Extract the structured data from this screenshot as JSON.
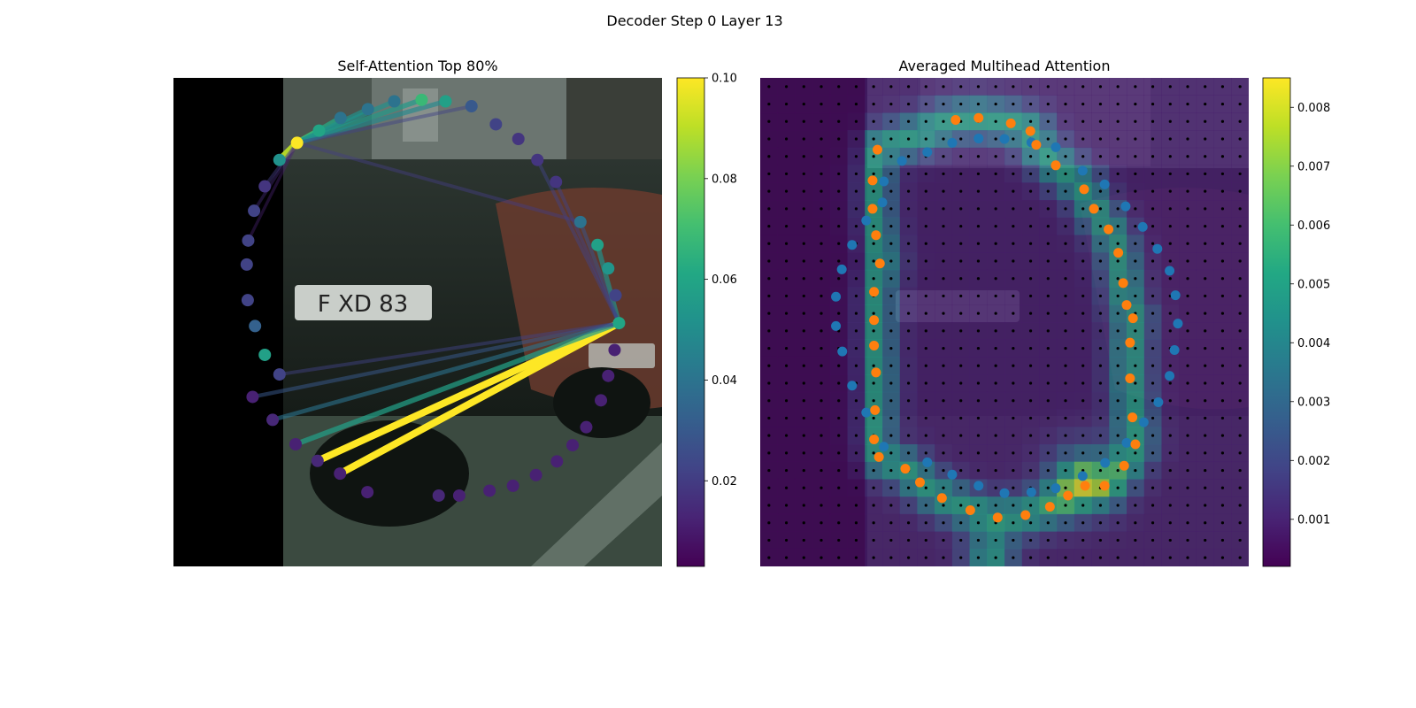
{
  "figure": {
    "title": "Decoder Step 0 Layer 13"
  },
  "chart_data": [
    {
      "type": "scatter",
      "title": "Self-Attention Top 80%",
      "background": "street-scene-photo",
      "xlim": [
        0,
        1
      ],
      "ylim": [
        0,
        1
      ],
      "colormap": "viridis",
      "colorbar": {
        "min": 0.003,
        "max": 0.1,
        "ticks": [
          0.02,
          0.04,
          0.06,
          0.08,
          0.1
        ],
        "tick_labels": [
          "0.02",
          "0.04",
          "0.06",
          "0.08",
          "0.10"
        ]
      },
      "points": [
        [
          0.397,
          0.848,
          0.012
        ],
        [
          0.341,
          0.81,
          0.012
        ],
        [
          0.295,
          0.784,
          0.014
        ],
        [
          0.25,
          0.75,
          0.012
        ],
        [
          0.203,
          0.7,
          0.014
        ],
        [
          0.162,
          0.653,
          0.012
        ],
        [
          0.217,
          0.607,
          0.022
        ],
        [
          0.187,
          0.567,
          0.058
        ],
        [
          0.167,
          0.508,
          0.033
        ],
        [
          0.152,
          0.455,
          0.022
        ],
        [
          0.15,
          0.382,
          0.022
        ],
        [
          0.153,
          0.333,
          0.022
        ],
        [
          0.165,
          0.272,
          0.022
        ],
        [
          0.187,
          0.222,
          0.018
        ],
        [
          0.217,
          0.168,
          0.052
        ],
        [
          0.253,
          0.133,
          0.1
        ],
        [
          0.298,
          0.108,
          0.06
        ],
        [
          0.342,
          0.082,
          0.04
        ],
        [
          0.398,
          0.064,
          0.04
        ],
        [
          0.452,
          0.048,
          0.04
        ],
        [
          0.508,
          0.045,
          0.068
        ],
        [
          0.557,
          0.048,
          0.058
        ],
        [
          0.61,
          0.058,
          0.03
        ],
        [
          0.66,
          0.095,
          0.022
        ],
        [
          0.706,
          0.125,
          0.018
        ],
        [
          0.745,
          0.168,
          0.018
        ],
        [
          0.783,
          0.213,
          0.018
        ],
        [
          0.833,
          0.295,
          0.04
        ],
        [
          0.868,
          0.342,
          0.058
        ],
        [
          0.89,
          0.39,
          0.053
        ],
        [
          0.905,
          0.445,
          0.022
        ],
        [
          0.912,
          0.502,
          0.06
        ],
        [
          0.903,
          0.557,
          0.012
        ],
        [
          0.89,
          0.61,
          0.012
        ],
        [
          0.875,
          0.66,
          0.012
        ],
        [
          0.845,
          0.715,
          0.012
        ],
        [
          0.817,
          0.752,
          0.012
        ],
        [
          0.785,
          0.785,
          0.012
        ],
        [
          0.742,
          0.813,
          0.012
        ],
        [
          0.695,
          0.835,
          0.012
        ],
        [
          0.647,
          0.845,
          0.012
        ],
        [
          0.585,
          0.855,
          0.012
        ],
        [
          0.543,
          0.855,
          0.014
        ]
      ],
      "edges": [
        [
          31,
          1,
          0.1
        ],
        [
          31,
          2,
          0.1
        ],
        [
          31,
          3,
          0.058
        ],
        [
          31,
          4,
          0.04
        ],
        [
          31,
          5,
          0.03
        ],
        [
          31,
          6,
          0.022
        ],
        [
          31,
          28,
          0.052
        ],
        [
          31,
          27,
          0.028
        ],
        [
          31,
          26,
          0.022
        ],
        [
          31,
          25,
          0.022
        ],
        [
          15,
          14,
          0.09
        ],
        [
          15,
          16,
          0.078
        ],
        [
          15,
          17,
          0.062
        ],
        [
          15,
          18,
          0.052
        ],
        [
          15,
          19,
          0.052
        ],
        [
          15,
          20,
          0.055
        ],
        [
          15,
          21,
          0.048
        ],
        [
          15,
          22,
          0.022
        ],
        [
          15,
          27,
          0.02
        ],
        [
          15,
          12,
          0.015
        ],
        [
          15,
          13,
          0.02
        ],
        [
          15,
          11,
          0.012
        ]
      ]
    },
    {
      "type": "heatmap",
      "title": "Averaged Multihead Attention",
      "background": "street-scene-photo",
      "xlim": [
        0,
        1
      ],
      "ylim": [
        0,
        1
      ],
      "colormap": "viridis",
      "grid_cells": [
        28,
        28
      ],
      "colorbar": {
        "min": 0.0002,
        "max": 0.0085,
        "ticks": [
          0.001,
          0.002,
          0.003,
          0.004,
          0.005,
          0.006,
          0.007,
          0.008
        ],
        "tick_labels": [
          "0.001",
          "0.002",
          "0.003",
          "0.004",
          "0.005",
          "0.006",
          "0.007",
          "0.008"
        ]
      },
      "series": [
        {
          "color": "#1f77b4",
          "points": [
            [
              0.342,
              0.152
            ],
            [
              0.393,
              0.133
            ],
            [
              0.447,
              0.124
            ],
            [
              0.5,
              0.125
            ],
            [
              0.555,
              0.132
            ],
            [
              0.605,
              0.142
            ],
            [
              0.66,
              0.19
            ],
            [
              0.705,
              0.218
            ],
            [
              0.748,
              0.263
            ],
            [
              0.783,
              0.305
            ],
            [
              0.813,
              0.35
            ],
            [
              0.838,
              0.395
            ],
            [
              0.85,
              0.445
            ],
            [
              0.855,
              0.503
            ],
            [
              0.848,
              0.557
            ],
            [
              0.838,
              0.61
            ],
            [
              0.815,
              0.664
            ],
            [
              0.785,
              0.705
            ],
            [
              0.75,
              0.747
            ],
            [
              0.706,
              0.788
            ],
            [
              0.66,
              0.815
            ],
            [
              0.605,
              0.84
            ],
            [
              0.555,
              0.848
            ],
            [
              0.5,
              0.85
            ],
            [
              0.447,
              0.835
            ],
            [
              0.393,
              0.812
            ],
            [
              0.342,
              0.787
            ],
            [
              0.253,
              0.755
            ],
            [
              0.217,
              0.685
            ],
            [
              0.188,
              0.63
            ],
            [
              0.168,
              0.56
            ],
            [
              0.155,
              0.508
            ],
            [
              0.155,
              0.448
            ],
            [
              0.167,
              0.392
            ],
            [
              0.188,
              0.342
            ],
            [
              0.217,
              0.292
            ],
            [
              0.25,
              0.255
            ],
            [
              0.253,
              0.212
            ],
            [
              0.29,
              0.17
            ]
          ]
        },
        {
          "color": "#ff7f0e",
          "points": [
            [
              0.4,
              0.086
            ],
            [
              0.447,
              0.082
            ],
            [
              0.513,
              0.093
            ],
            [
              0.553,
              0.109
            ],
            [
              0.565,
              0.137
            ],
            [
              0.605,
              0.179
            ],
            [
              0.663,
              0.228
            ],
            [
              0.683,
              0.268
            ],
            [
              0.713,
              0.31
            ],
            [
              0.733,
              0.358
            ],
            [
              0.743,
              0.42
            ],
            [
              0.75,
              0.465
            ],
            [
              0.763,
              0.492
            ],
            [
              0.757,
              0.542
            ],
            [
              0.757,
              0.615
            ],
            [
              0.762,
              0.695
            ],
            [
              0.768,
              0.75
            ],
            [
              0.745,
              0.794
            ],
            [
              0.705,
              0.835
            ],
            [
              0.665,
              0.835
            ],
            [
              0.63,
              0.855
            ],
            [
              0.593,
              0.878
            ],
            [
              0.543,
              0.895
            ],
            [
              0.486,
              0.9
            ],
            [
              0.43,
              0.885
            ],
            [
              0.372,
              0.86
            ],
            [
              0.327,
              0.828
            ],
            [
              0.297,
              0.8
            ],
            [
              0.243,
              0.776
            ],
            [
              0.233,
              0.74
            ],
            [
              0.235,
              0.68
            ],
            [
              0.237,
              0.603
            ],
            [
              0.233,
              0.548
            ],
            [
              0.233,
              0.496
            ],
            [
              0.233,
              0.438
            ],
            [
              0.245,
              0.38
            ],
            [
              0.237,
              0.322
            ],
            [
              0.23,
              0.268
            ],
            [
              0.23,
              0.21
            ],
            [
              0.24,
              0.147
            ]
          ]
        }
      ]
    }
  ]
}
